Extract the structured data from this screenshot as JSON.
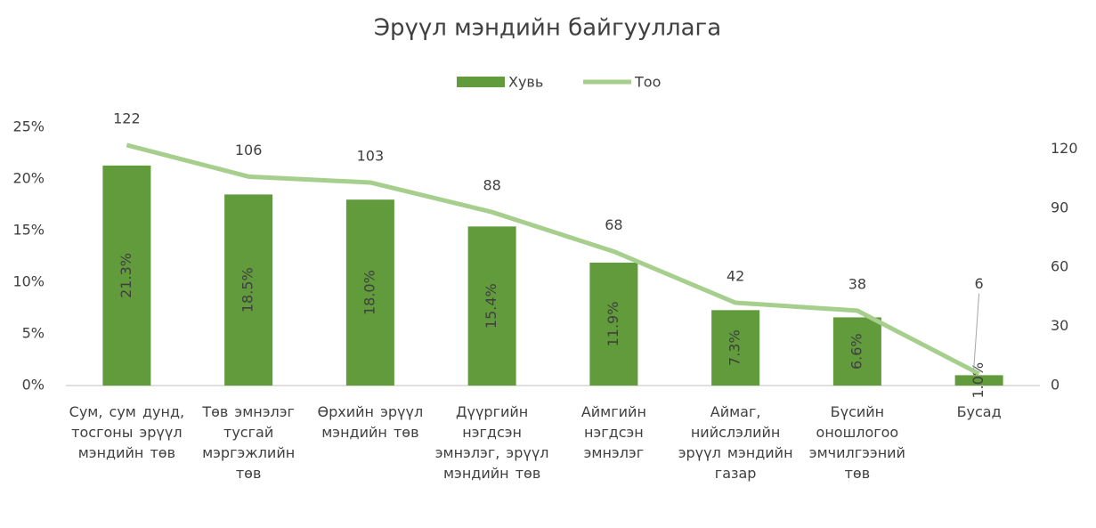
{
  "chart_data": {
    "type": "bar",
    "title": "Эрүүл мэндийн байгууллага",
    "categories": [
      "Сум, сум дунд, тосгоны эрүүл мэндийн төв",
      "Төв эмнэлэг тусгай мэргэжлийн төв",
      "Өрхийн эрүүл мэндийн төв",
      "Дүүргийн нэгдсэн эмнэлэг, эрүүл мэндийн төв",
      "Аймгийн нэгдсэн эмнэлэг",
      "Аймаг, нийслэлийн эрүүл мэндийн газар",
      "Бүсийн оношлогоо эмчилгээний төв",
      "Бусад"
    ],
    "series": [
      {
        "name": "Хувь",
        "type": "bar",
        "color": "#619b3c",
        "values": [
          21.3,
          18.5,
          18.0,
          15.4,
          11.9,
          7.3,
          6.6,
          1.0
        ],
        "value_labels": [
          "21.3%",
          "18.5%",
          "18.0%",
          "15.4%",
          "11.9%",
          "7.3%",
          "6.6%",
          "1.0%"
        ]
      },
      {
        "name": "Тоо",
        "type": "line",
        "axis": "y2",
        "color": "#a6ce8c",
        "values": [
          122,
          106,
          103,
          88,
          68,
          42,
          38,
          6
        ]
      }
    ],
    "ylim": [
      0,
      25
    ],
    "yticks": [
      {
        "value": 0,
        "label": "0%"
      },
      {
        "value": 5,
        "label": "5%"
      },
      {
        "value": 10,
        "label": "10%"
      },
      {
        "value": 15,
        "label": "15%"
      },
      {
        "value": 20,
        "label": "20%"
      },
      {
        "value": 25,
        "label": "25%"
      }
    ],
    "y2lim": [
      0,
      131
    ],
    "y2ticks": [
      0,
      30,
      60,
      90,
      120
    ],
    "legend": "top"
  }
}
